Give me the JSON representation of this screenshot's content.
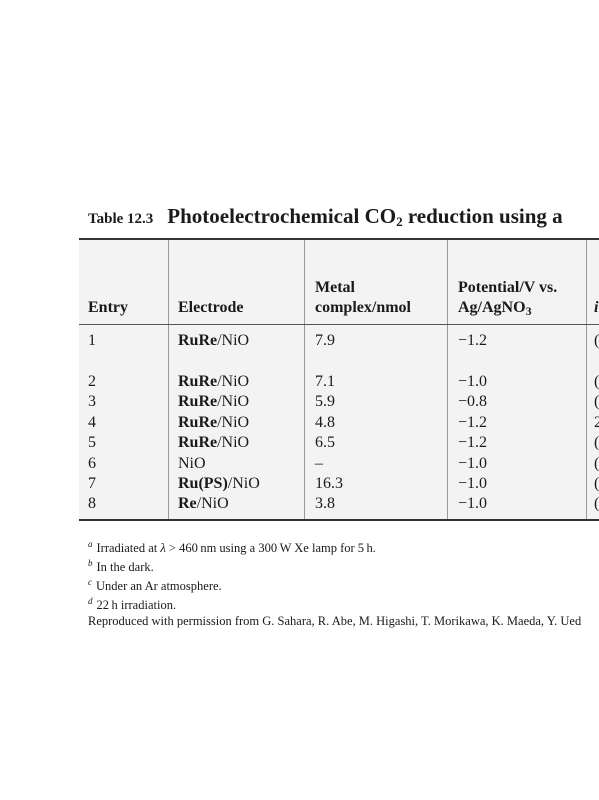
{
  "caption": {
    "label": "Table 12.3",
    "title_pre": "Photoelectrochemical CO",
    "title_sub": "2",
    "title_post": " reduction using a"
  },
  "table": {
    "headers": {
      "entry": "Entry",
      "electrode": "Electrode",
      "metal_line1": "Metal",
      "metal_line2": "complex/nmol",
      "potential_line1": "Potential/V vs.",
      "potential_line2_pre": "Ag/AgNO",
      "potential_line2_sub": "3",
      "partial": "i"
    },
    "rows": [
      {
        "entry": "1",
        "electrode_bold": "RuRe",
        "electrode_rest": "/NiO",
        "metal": "7.9",
        "potential": "−1.2",
        "partial": "("
      },
      {
        "entry": "2",
        "electrode_bold": "RuRe",
        "electrode_rest": "/NiO",
        "metal": "7.1",
        "potential": "−1.0",
        "partial": "("
      },
      {
        "entry": "3",
        "electrode_bold": "RuRe",
        "electrode_rest": "/NiO",
        "metal": "5.9",
        "potential": "−0.8",
        "partial": "("
      },
      {
        "entry": "4",
        "electrode_bold": "RuRe",
        "electrode_rest": "/NiO",
        "metal": "4.8",
        "potential": "−1.2",
        "partial": "2"
      },
      {
        "entry": "5",
        "electrode_bold": "RuRe",
        "electrode_rest": "/NiO",
        "metal": "6.5",
        "potential": "−1.2",
        "partial": "("
      },
      {
        "entry": "6",
        "electrode_bold": "",
        "electrode_rest": "NiO",
        "metal": "–",
        "potential": "−1.0",
        "partial": "("
      },
      {
        "entry": "7",
        "electrode_bold": "Ru(PS)",
        "electrode_rest": "/NiO",
        "metal": "16.3",
        "potential": "−1.0",
        "partial": "("
      },
      {
        "entry": "8",
        "electrode_bold": "Re",
        "electrode_rest": "/NiO",
        "metal": "3.8",
        "potential": "−1.0",
        "partial": "("
      }
    ]
  },
  "footnotes": {
    "a": {
      "mark": "a",
      "pre": "Irradiated at ",
      "lambda": "λ",
      "post": " > 460 nm using a 300 W Xe lamp for 5 h."
    },
    "b": {
      "mark": "b",
      "text": "In the dark."
    },
    "c": {
      "mark": "c",
      "text": "Under an Ar atmosphere."
    },
    "d": {
      "mark": "d",
      "text": "22 h irradiation."
    },
    "credit": "Reproduced with permission from G. Sahara, R. Abe, M. Higashi, T. Morikawa, K. Maeda, Y. Ued"
  }
}
